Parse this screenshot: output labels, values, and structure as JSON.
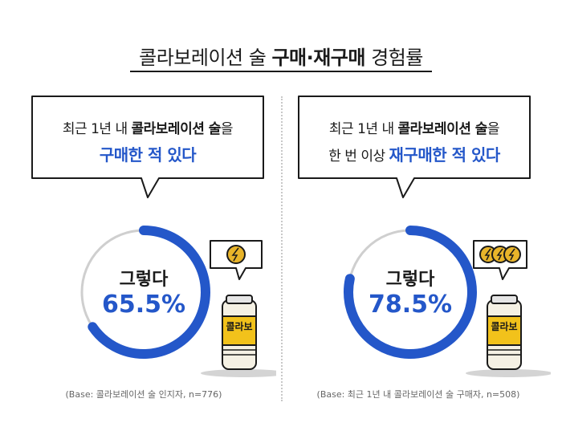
{
  "title": {
    "prefix": "콜라보레이션 술 ",
    "bold": "구매·재구매",
    "suffix": " 경험률"
  },
  "panels": [
    {
      "line1_prefix": "최근 1년 내 ",
      "line1_bold": "콜라보레이션 술",
      "line1_suffix": "을",
      "line2_prefix": "",
      "line2_emphasis": "구매한 적 있다",
      "center_label": "그렇다",
      "center_value": "65.5%",
      "can_label": "콜라보",
      "coins": 1,
      "base_note": "(Base: 콜라보레이션 술 인지자, n=776)"
    },
    {
      "line1_prefix": "최근 1년 내 ",
      "line1_bold": "콜라보레이션 술",
      "line1_suffix": "을",
      "line2_prefix": "한 번 이상 ",
      "line2_emphasis": "재구매한 적 있다",
      "center_label": "그렇다",
      "center_value": "78.5%",
      "can_label": "콜라보",
      "coins": 3,
      "base_note": "(Base: 최근 1년 내 콜라보레이션 술 구매자, n=508)"
    }
  ],
  "chart_data": [
    {
      "type": "pie",
      "style": "donut",
      "categories": [
        "그렇다"
      ],
      "values": [
        65.5
      ]
    },
    {
      "type": "pie",
      "style": "donut",
      "categories": [
        "그렇다"
      ],
      "values": [
        78.5
      ]
    }
  ],
  "colors": {
    "accent": "#2457c9",
    "track": "#cfcfcf",
    "can_body": "#f5f1e4",
    "can_label_bg": "#f2c21b",
    "coin": "#e8b42a"
  }
}
